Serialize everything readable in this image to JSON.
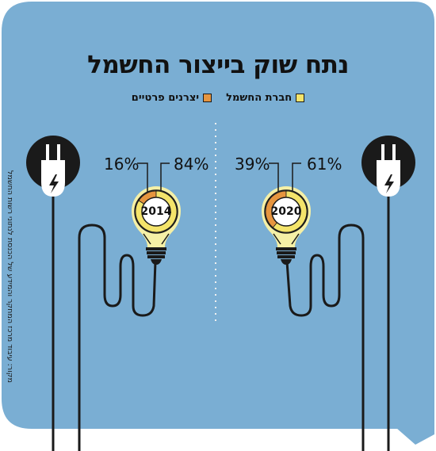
{
  "title": "נתח שוק בייצור החשמל",
  "legend": {
    "electric_company": {
      "label": "חברת החשמל",
      "color": "#f4e46a"
    },
    "private_producers": {
      "label": "יצרנים פרטיים",
      "color": "#e6953f"
    }
  },
  "source": "מקור: עיבוד מרכז המחקר והמידע של הכנסת לנתוני רשות החשמל",
  "colors": {
    "background": "#7aaed3",
    "bulb": "#f5f0a6",
    "ring_track": "#f4e46a",
    "dark": "#1a1a1a"
  },
  "chart_data": [
    {
      "type": "pie",
      "title": "2014",
      "categories": [
        "יצרנים פרטיים",
        "חברת החשמל"
      ],
      "values": [
        16,
        84
      ],
      "labels": [
        "16%",
        "84%"
      ],
      "colors": [
        "#e6953f",
        "#f4e46a"
      ]
    },
    {
      "type": "pie",
      "title": "2020",
      "categories": [
        "יצרנים פרטיים",
        "חברת החשמל"
      ],
      "values": [
        39,
        61
      ],
      "labels": [
        "39%",
        "61%"
      ],
      "colors": [
        "#e6953f",
        "#f4e46a"
      ]
    }
  ]
}
